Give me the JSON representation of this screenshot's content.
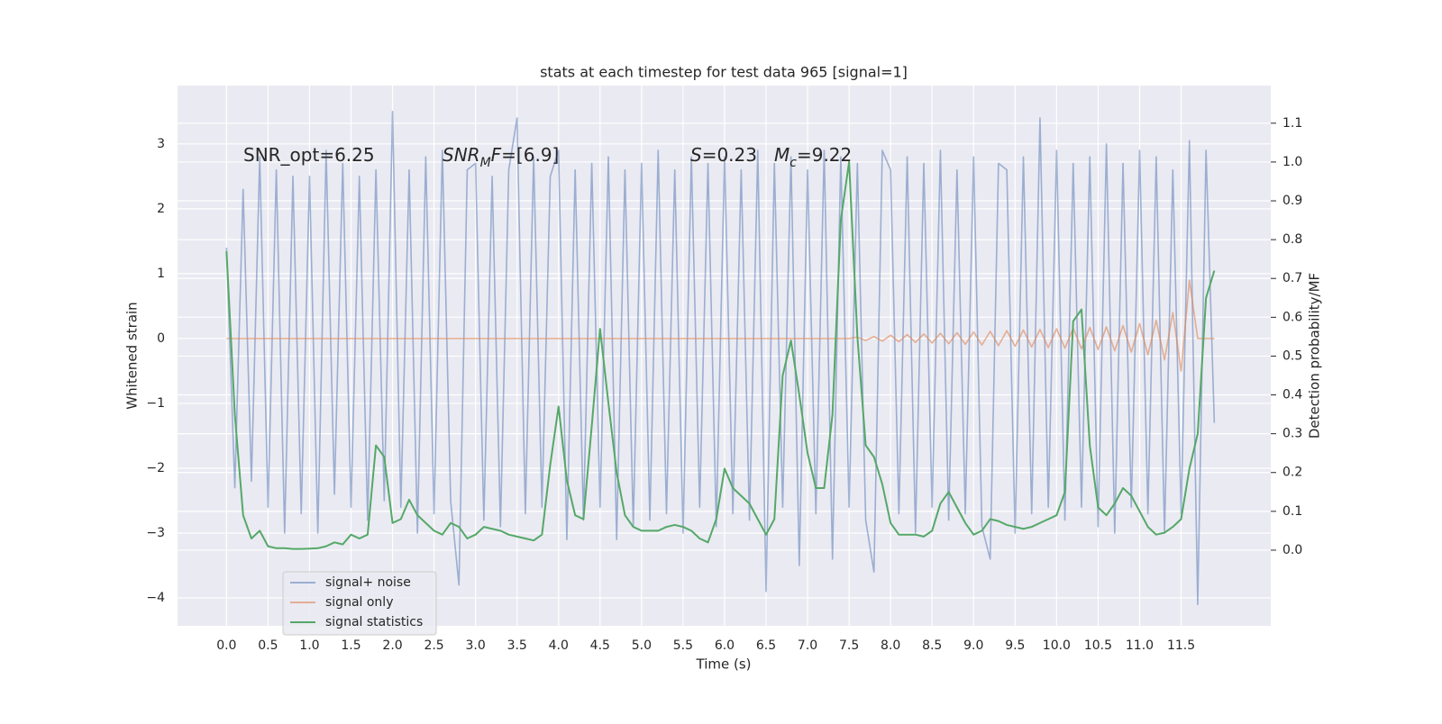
{
  "chart_data": {
    "type": "line",
    "title": "stats at each timestep for test data 965 [signal=1]",
    "x_label": "Time (s)",
    "y_label": "Whitened strain",
    "y2_label": "Detection probability/MF",
    "grid": true,
    "legend_loc": "lower left",
    "xlim": [
      -0.59,
      12.58
    ],
    "ylim": [
      -4.43,
      3.9
    ],
    "y2lim": [
      -0.195,
      1.197
    ],
    "xticks": [
      {
        "value": 0,
        "label": "0.0"
      },
      0.5,
      {
        "value": 1,
        "label": "1.0"
      },
      1.5,
      {
        "value": 2,
        "label": "2.0"
      },
      2.5,
      {
        "value": 3,
        "label": "3.0"
      },
      3.5,
      {
        "value": 4,
        "label": "4.0"
      },
      4.5,
      {
        "value": 5,
        "label": "5.0"
      },
      5.5,
      {
        "value": 6,
        "label": "6.0"
      },
      6.5,
      {
        "value": 7,
        "label": "7.0"
      },
      7.5,
      {
        "value": 8,
        "label": "8.0"
      },
      8.5,
      {
        "value": 9,
        "label": "9.0"
      },
      9.5,
      {
        "value": 10,
        "label": "10.0"
      },
      10.5,
      {
        "value": 11,
        "label": "11.0"
      },
      11.5
    ],
    "yticks": [
      {
        "value": -4,
        "label": "−4"
      },
      {
        "value": -3,
        "label": "−3"
      },
      {
        "value": -2,
        "label": "−2"
      },
      {
        "value": -1,
        "label": "−1"
      },
      0,
      1,
      2,
      3
    ],
    "y2ticks": [
      {
        "value": 0,
        "label": "0.0"
      },
      0.1,
      0.2,
      0.3,
      0.4,
      0.5,
      0.6,
      0.7,
      0.8,
      0.9,
      {
        "value": 1,
        "label": "1.0"
      },
      1.1
    ],
    "annotations": [
      {
        "parts": [
          {
            "text": "SNR_opt=6.25"
          }
        ]
      },
      {
        "parts": [
          {
            "text": "SNR",
            "italic": true
          },
          {
            "text": "M",
            "italic": true,
            "sub": true
          },
          {
            "text": "F",
            "italic": true
          },
          {
            "text": "=[6.9]"
          }
        ]
      },
      {
        "parts": [
          {
            "text": "S",
            "italic": true
          },
          {
            "text": "=0.23"
          }
        ]
      },
      {
        "parts": [
          {
            "text": "M",
            "italic": true
          },
          {
            "text": "c",
            "italic": true,
            "sub": true
          },
          {
            "text": "=9.22"
          }
        ]
      }
    ],
    "x": [
      0.0,
      0.1,
      0.2,
      0.3,
      0.4,
      0.5,
      0.6,
      0.7,
      0.8,
      0.9,
      1.0,
      1.1,
      1.2,
      1.3,
      1.4,
      1.5,
      1.6,
      1.7,
      1.8,
      1.9,
      2.0,
      2.1,
      2.2,
      2.3,
      2.4,
      2.5,
      2.6,
      2.7,
      2.8,
      2.9,
      3.0,
      3.1,
      3.2,
      3.3,
      3.4,
      3.5,
      3.6,
      3.7,
      3.8,
      3.9,
      4.0,
      4.1,
      4.2,
      4.3,
      4.4,
      4.5,
      4.6,
      4.7,
      4.8,
      4.9,
      5.0,
      5.1,
      5.2,
      5.3,
      5.4,
      5.5,
      5.6,
      5.7,
      5.8,
      5.9,
      6.0,
      6.1,
      6.2,
      6.3,
      6.4,
      6.5,
      6.6,
      6.7,
      6.8,
      6.9,
      7.0,
      7.1,
      7.2,
      7.3,
      7.4,
      7.5,
      7.6,
      7.7,
      7.8,
      7.9,
      8.0,
      8.1,
      8.2,
      8.3,
      8.4,
      8.5,
      8.6,
      8.7,
      8.8,
      8.9,
      9.0,
      9.1,
      9.2,
      9.3,
      9.4,
      9.5,
      9.6,
      9.7,
      9.8,
      9.9,
      10.0,
      10.1,
      10.2,
      10.3,
      10.4,
      10.5,
      10.6,
      10.7,
      10.8,
      10.9,
      11.0,
      11.1,
      11.2,
      11.3,
      11.4,
      11.5,
      11.6,
      11.7,
      11.8,
      11.9
    ],
    "series": [
      {
        "name": "signal+ noise",
        "color": "#4c72b0",
        "alpha": 0.5,
        "axis": "y",
        "values": [
          1.4,
          -2.3,
          2.3,
          -2.2,
          2.8,
          -2.6,
          2.6,
          -3.0,
          2.5,
          -2.7,
          2.5,
          -3.0,
          2.9,
          -2.4,
          2.7,
          -2.6,
          2.5,
          -2.8,
          2.6,
          -2.5,
          3.5,
          -2.6,
          2.6,
          -3.0,
          2.8,
          -2.7,
          2.9,
          -2.5,
          -3.8,
          2.6,
          2.7,
          -2.8,
          2.5,
          -2.9,
          2.6,
          3.4,
          -2.7,
          2.8,
          -2.6,
          2.5,
          2.9,
          -3.1,
          2.6,
          -2.8,
          2.7,
          -2.6,
          2.8,
          -3.1,
          2.6,
          -2.9,
          2.7,
          -2.8,
          2.9,
          -2.7,
          2.6,
          -3.0,
          2.8,
          -2.6,
          2.7,
          -2.9,
          2.8,
          -2.7,
          2.6,
          -2.8,
          2.9,
          -3.9,
          2.7,
          -2.6,
          2.8,
          -3.5,
          2.6,
          -2.7,
          2.9,
          -3.4,
          2.8,
          -2.6,
          2.7,
          -2.8,
          -3.6,
          2.9,
          2.6,
          -2.7,
          2.8,
          -3.0,
          2.7,
          -2.6,
          2.9,
          -2.8,
          2.6,
          -2.7,
          2.8,
          -2.9,
          -3.4,
          2.7,
          2.6,
          -3.0,
          2.8,
          -2.7,
          3.4,
          -2.6,
          2.9,
          -2.8,
          2.7,
          -2.6,
          2.8,
          -2.9,
          3.0,
          -3.0,
          2.7,
          -2.6,
          2.9,
          -2.7,
          2.8,
          -3.0,
          2.6,
          -2.7,
          3.05,
          -4.1,
          2.9,
          -1.3
        ]
      },
      {
        "name": "signal only",
        "color": "#dd8452",
        "alpha": 0.6,
        "axis": "y",
        "values": [
          0,
          0,
          0,
          0,
          0,
          0,
          0,
          0,
          0,
          0,
          0,
          0,
          0,
          0,
          0,
          0,
          0,
          0,
          0,
          0,
          0,
          0,
          0,
          0,
          0,
          0,
          0,
          0,
          0,
          0,
          0,
          0,
          0,
          0,
          0,
          0,
          0,
          0,
          0,
          0,
          0,
          0,
          0,
          0,
          0,
          0,
          0,
          0,
          0,
          0,
          0,
          0,
          0,
          0,
          0,
          0,
          0,
          0,
          0,
          0,
          0,
          0,
          0,
          0,
          0,
          0,
          0,
          0,
          0,
          0,
          0,
          0,
          0,
          0,
          0,
          0,
          0.02,
          -0.03,
          0.03,
          -0.04,
          0.05,
          -0.05,
          0.06,
          -0.06,
          0.07,
          -0.07,
          0.08,
          -0.08,
          0.09,
          -0.09,
          0.1,
          -0.1,
          0.11,
          -0.11,
          0.12,
          -0.12,
          0.13,
          -0.13,
          0.14,
          -0.14,
          0.15,
          -0.15,
          0.16,
          -0.16,
          0.17,
          -0.17,
          0.18,
          -0.19,
          0.2,
          -0.21,
          0.23,
          -0.25,
          0.28,
          -0.33,
          0.4,
          -0.5,
          0.9,
          0,
          0,
          0
        ]
      },
      {
        "name": "signal statistics",
        "color": "#55a868",
        "alpha": 1,
        "axis": "y2",
        "values": [
          0.77,
          0.35,
          0.09,
          0.03,
          0.05,
          0.01,
          0.005,
          0.005,
          0.003,
          0.003,
          0.004,
          0.005,
          0.01,
          0.02,
          0.015,
          0.04,
          0.03,
          0.04,
          0.27,
          0.24,
          0.07,
          0.08,
          0.13,
          0.09,
          0.07,
          0.05,
          0.04,
          0.07,
          0.06,
          0.03,
          0.04,
          0.06,
          0.055,
          0.05,
          0.04,
          0.035,
          0.03,
          0.025,
          0.04,
          0.22,
          0.37,
          0.18,
          0.09,
          0.08,
          0.32,
          0.57,
          0.38,
          0.2,
          0.09,
          0.06,
          0.05,
          0.05,
          0.05,
          0.06,
          0.065,
          0.06,
          0.05,
          0.03,
          0.02,
          0.08,
          0.21,
          0.16,
          0.14,
          0.12,
          0.08,
          0.04,
          0.08,
          0.45,
          0.54,
          0.4,
          0.25,
          0.16,
          0.16,
          0.35,
          0.85,
          1.0,
          0.55,
          0.27,
          0.24,
          0.17,
          0.07,
          0.04,
          0.04,
          0.04,
          0.035,
          0.05,
          0.12,
          0.15,
          0.11,
          0.07,
          0.04,
          0.05,
          0.08,
          0.075,
          0.065,
          0.06,
          0.055,
          0.06,
          0.07,
          0.08,
          0.09,
          0.15,
          0.59,
          0.62,
          0.27,
          0.11,
          0.09,
          0.12,
          0.16,
          0.14,
          0.1,
          0.06,
          0.04,
          0.045,
          0.06,
          0.08,
          0.21,
          0.3,
          0.65,
          0.72
        ]
      }
    ]
  }
}
